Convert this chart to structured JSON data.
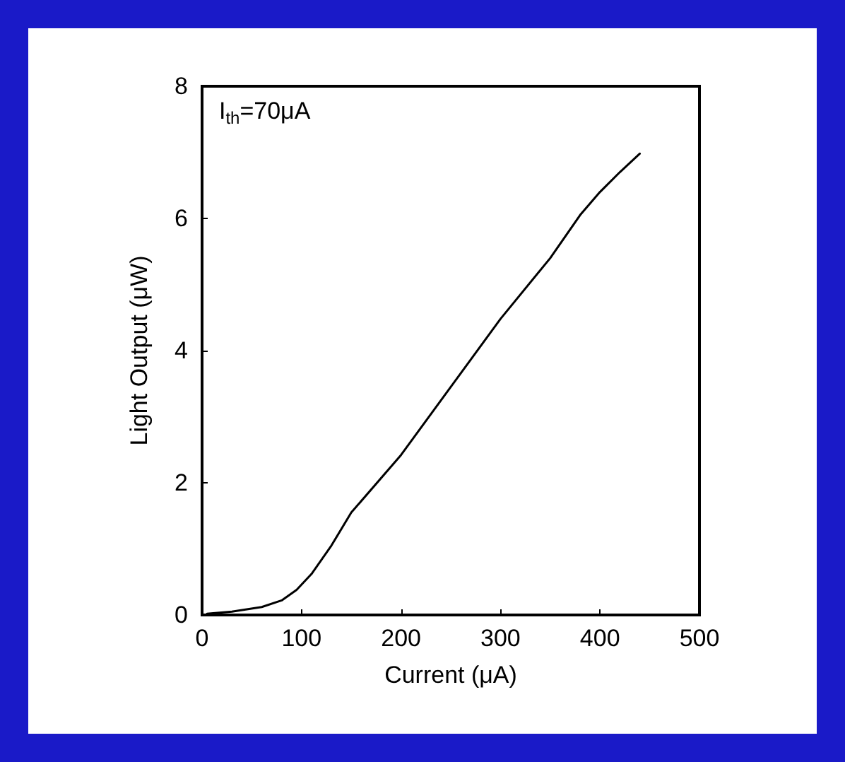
{
  "chart_data": {
    "type": "line",
    "xlabel": "Current (μA)",
    "ylabel": "Light Output (μW)",
    "annotations": [
      "I$_{th}$=70μA"
    ],
    "x": [
      5,
      30,
      60,
      80,
      95,
      110,
      130,
      150,
      200,
      250,
      300,
      350,
      380,
      400,
      420,
      440
    ],
    "series": [
      {
        "color": "#000000",
        "values": [
          0.02,
          0.05,
          0.12,
          0.22,
          0.38,
          0.62,
          1.05,
          1.55,
          2.42,
          3.45,
          4.48,
          5.4,
          6.05,
          6.4,
          6.7,
          6.98
        ]
      }
    ],
    "xlim": [
      0,
      500
    ],
    "xticks": [
      0,
      100,
      200,
      300,
      400,
      500
    ],
    "ylim": [
      0,
      8
    ],
    "yticks": [
      0,
      2,
      4,
      6,
      8
    ],
    "grid": false,
    "marker": "none",
    "line_style": "solid"
  }
}
